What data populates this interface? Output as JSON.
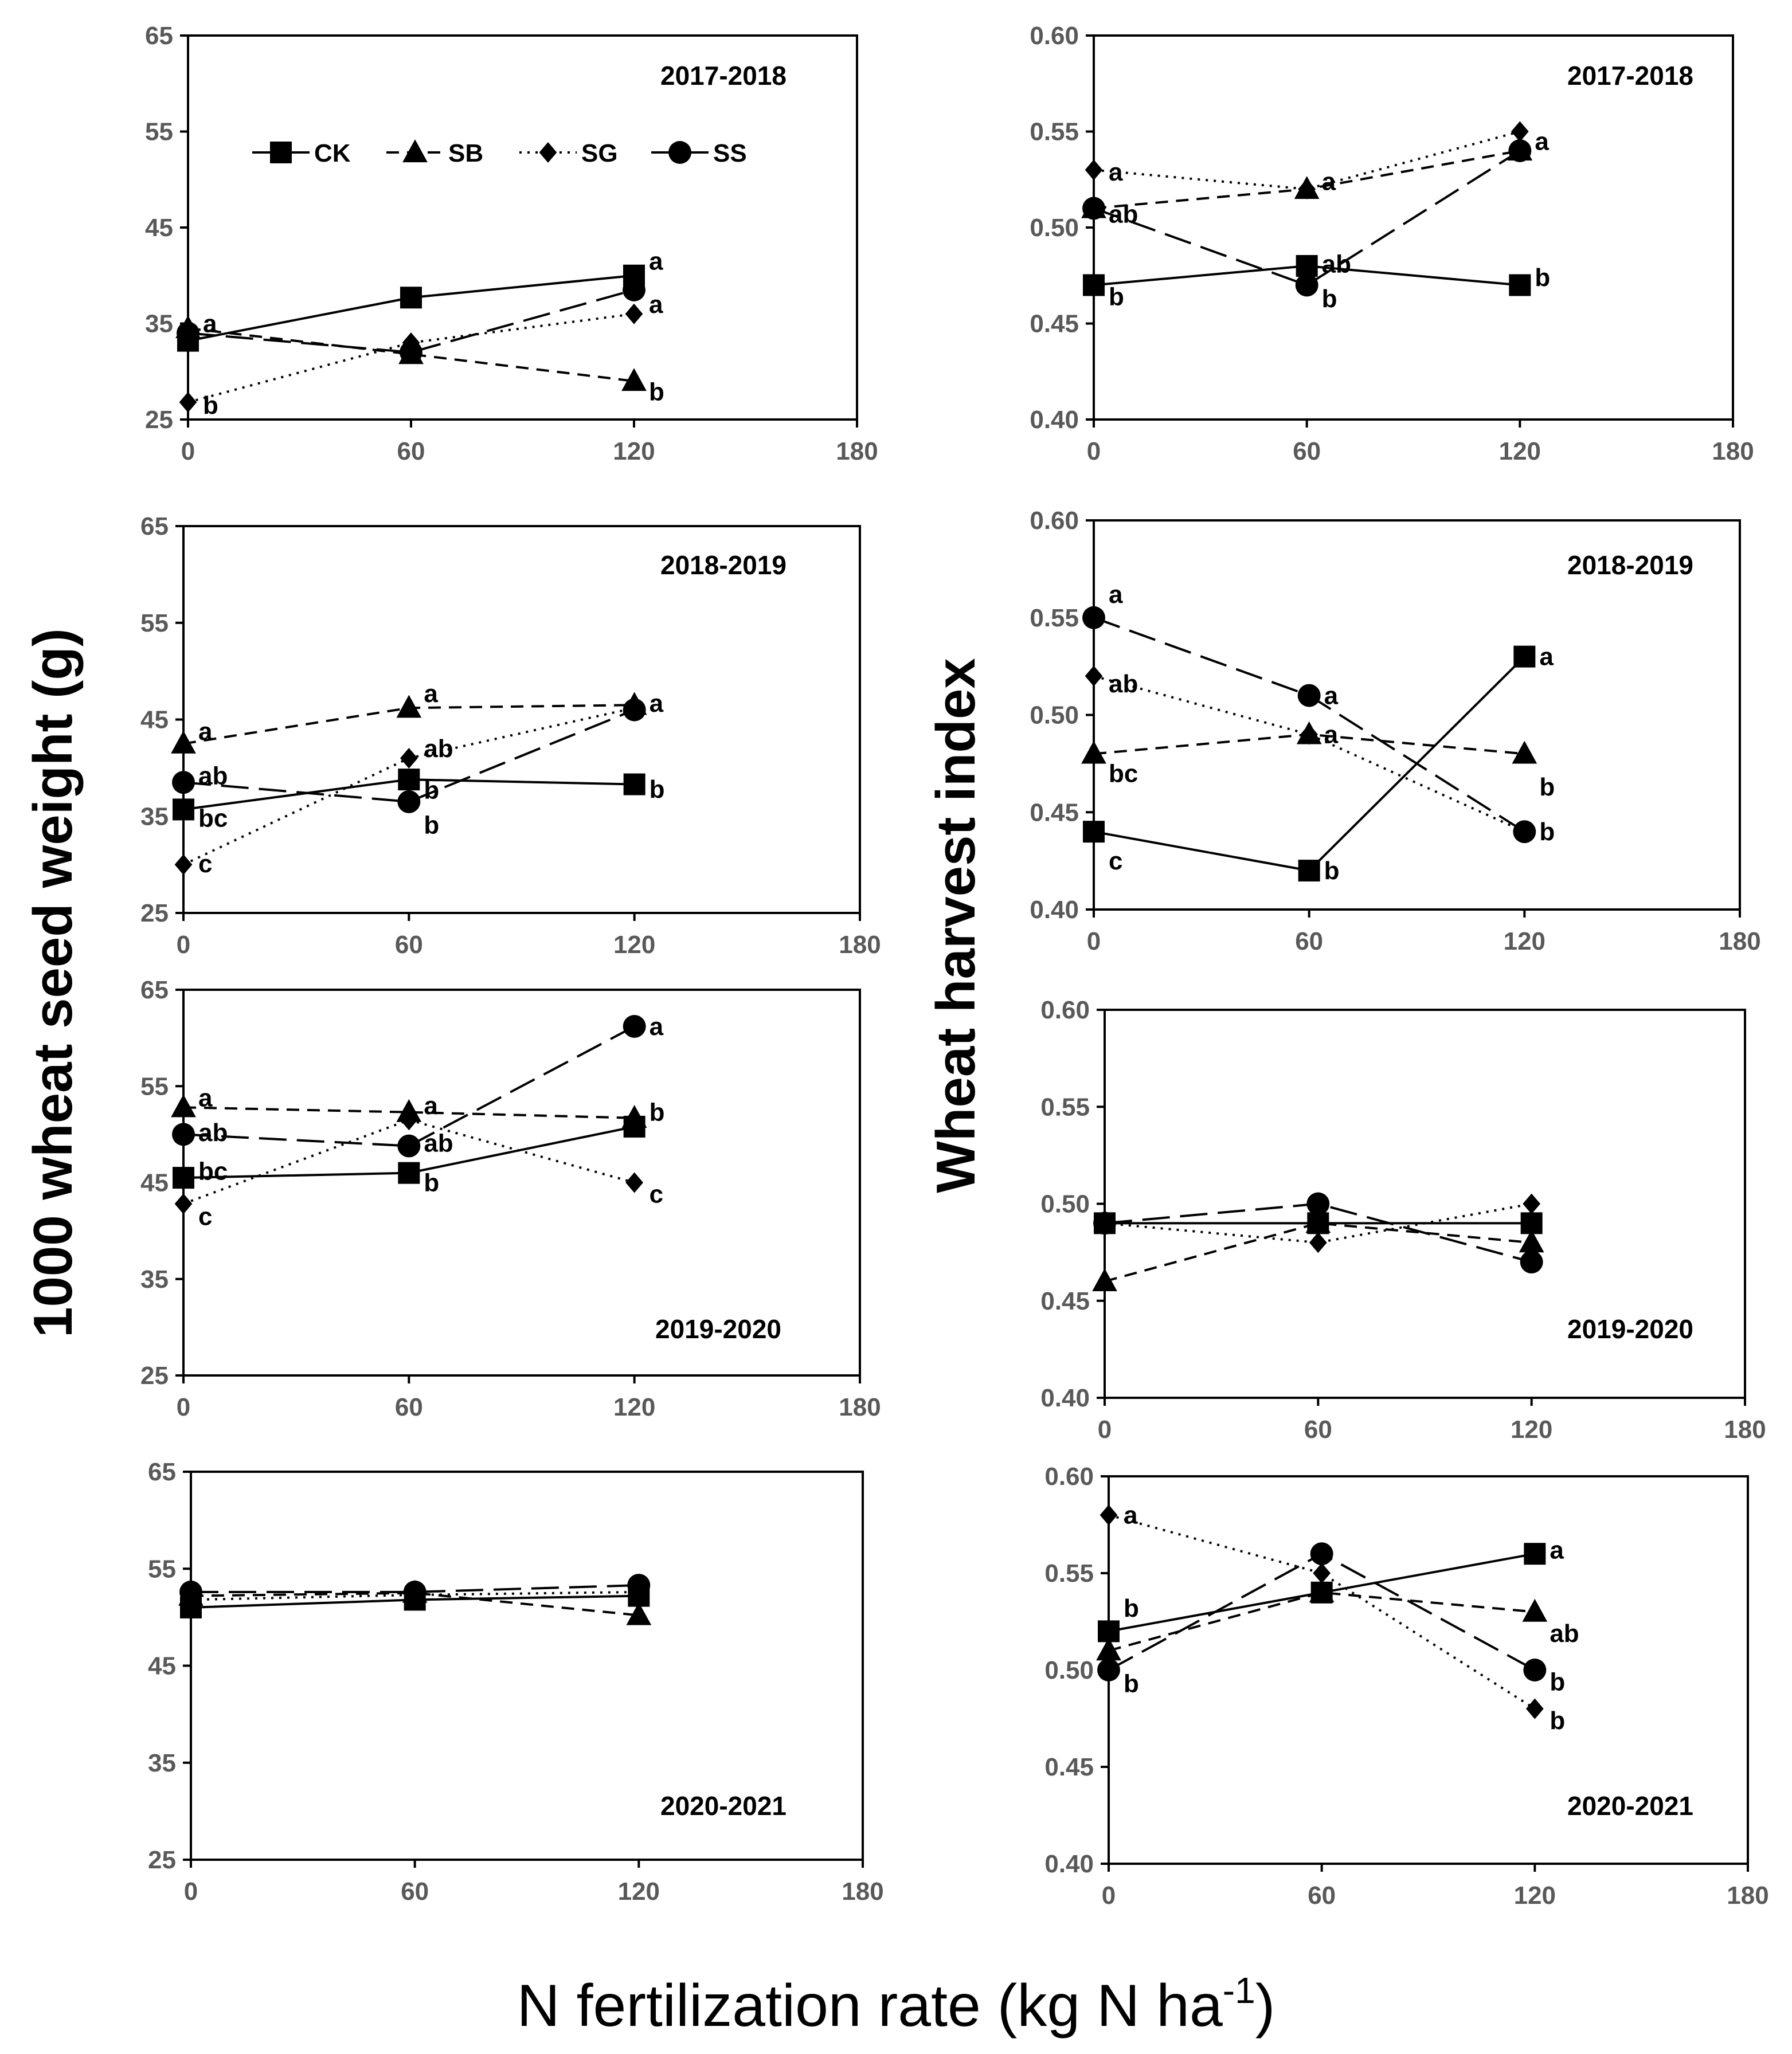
{
  "figure": {
    "xlabel_main": "N fertilization rate (kg N ha",
    "xlabel_sup": "-1",
    "xlabel_end": ")",
    "ylabel_left": "1000 wheat seed weight (g)",
    "ylabel_right": "Wheat harvest index",
    "series_styles": {
      "CK": {
        "marker": "square",
        "dash": "none"
      },
      "SB": {
        "marker": "triangle",
        "dash": "short-dash"
      },
      "SG": {
        "marker": "diamond",
        "dash": "dotted"
      },
      "SS": {
        "marker": "circle",
        "dash": "long-dash"
      }
    },
    "legend": {
      "placement": "top-left of first panel",
      "entries": [
        "CK",
        "SB",
        "SG",
        "SS"
      ]
    }
  },
  "chart_data": [
    {
      "type": "line",
      "title": "2017-2018",
      "xlim": [
        0,
        180
      ],
      "ylim": [
        25,
        65
      ],
      "x_ticks": [
        0,
        60,
        120,
        180
      ],
      "y_ticks": [
        25,
        35,
        45,
        55,
        65
      ],
      "series": [
        {
          "name": "CK",
          "x": [
            0,
            60,
            120
          ],
          "y": [
            33.2,
            37.7,
            40
          ]
        },
        {
          "name": "SB",
          "x": [
            0,
            60,
            120
          ],
          "y": [
            34.5,
            31.8,
            29
          ]
        },
        {
          "name": "SG",
          "x": [
            0,
            60,
            120
          ],
          "y": [
            26.8,
            33,
            36
          ]
        },
        {
          "name": "SS",
          "x": [
            0,
            60,
            120
          ],
          "y": [
            34,
            32,
            38.5
          ]
        }
      ],
      "annotations": [
        {
          "x": 0,
          "y": 35,
          "text": "a"
        },
        {
          "x": 0,
          "y": 26.5,
          "text": "b"
        },
        {
          "x": 120,
          "y": 41.5,
          "text": "a"
        },
        {
          "x": 120,
          "y": 37,
          "text": "a"
        },
        {
          "x": 120,
          "y": 27.9,
          "text": "b"
        }
      ]
    },
    {
      "type": "line",
      "title": "2017-2018",
      "xlim": [
        0,
        180
      ],
      "ylim": [
        0.4,
        0.6
      ],
      "x_ticks": [
        0,
        60,
        120,
        180
      ],
      "y_ticks": [
        0.4,
        0.45,
        0.5,
        0.55,
        0.6
      ],
      "series": [
        {
          "name": "CK",
          "x": [
            0,
            60,
            120
          ],
          "y": [
            0.47,
            0.48,
            0.47
          ]
        },
        {
          "name": "SB",
          "x": [
            0,
            60,
            120
          ],
          "y": [
            0.51,
            0.52,
            0.54
          ]
        },
        {
          "name": "SG",
          "x": [
            0,
            60,
            120
          ],
          "y": [
            0.53,
            0.52,
            0.55
          ]
        },
        {
          "name": "SS",
          "x": [
            0,
            60,
            120
          ],
          "y": [
            0.51,
            0.47,
            0.54
          ]
        }
      ],
      "annotations": [
        {
          "x": 0,
          "y": 0.529,
          "text": "a"
        },
        {
          "x": 0,
          "y": 0.507,
          "text": "ab"
        },
        {
          "x": 0,
          "y": 0.464,
          "text": "b"
        },
        {
          "x": 60,
          "y": 0.524,
          "text": "a"
        },
        {
          "x": 60,
          "y": 0.481,
          "text": "ab"
        },
        {
          "x": 60,
          "y": 0.463,
          "text": "b"
        },
        {
          "x": 120,
          "y": 0.545,
          "text": "a"
        },
        {
          "x": 120,
          "y": 0.474,
          "text": "b"
        }
      ]
    },
    {
      "type": "line",
      "title": "2018-2019",
      "xlim": [
        0,
        180
      ],
      "ylim": [
        25,
        65
      ],
      "x_ticks": [
        0,
        60,
        120,
        180
      ],
      "y_ticks": [
        25,
        35,
        45,
        55,
        65
      ],
      "series": [
        {
          "name": "CK",
          "x": [
            0,
            60,
            120
          ],
          "y": [
            35.7,
            38.8,
            38.3
          ]
        },
        {
          "name": "SB",
          "x": [
            0,
            60,
            120
          ],
          "y": [
            42.5,
            46.2,
            46.5
          ]
        },
        {
          "name": "SG",
          "x": [
            0,
            60,
            120
          ],
          "y": [
            30,
            41,
            46.2
          ]
        },
        {
          "name": "SS",
          "x": [
            0,
            60,
            120
          ],
          "y": [
            38.5,
            36.5,
            46
          ]
        }
      ],
      "annotations": [
        {
          "x": 0,
          "y": 43.8,
          "text": "a"
        },
        {
          "x": 0,
          "y": 39.2,
          "text": "ab"
        },
        {
          "x": 0,
          "y": 34.8,
          "text": "bc"
        },
        {
          "x": 0,
          "y": 30.1,
          "text": "c"
        },
        {
          "x": 60,
          "y": 47.7,
          "text": "a"
        },
        {
          "x": 60,
          "y": 42,
          "text": "ab"
        },
        {
          "x": 60,
          "y": 37.7,
          "text": "b"
        },
        {
          "x": 60,
          "y": 34.1,
          "text": "b"
        },
        {
          "x": 120,
          "y": 46.7,
          "text": "a"
        },
        {
          "x": 120,
          "y": 37.8,
          "text": "b"
        }
      ]
    },
    {
      "type": "line",
      "title": "2018-2019",
      "xlim": [
        0,
        180
      ],
      "ylim": [
        0.4,
        0.6
      ],
      "x_ticks": [
        0,
        60,
        120,
        180
      ],
      "y_ticks": [
        0.4,
        0.45,
        0.5,
        0.55,
        0.6
      ],
      "series": [
        {
          "name": "CK",
          "x": [
            0,
            60,
            120
          ],
          "y": [
            0.44,
            0.42,
            0.53
          ]
        },
        {
          "name": "SB",
          "x": [
            0,
            60,
            120
          ],
          "y": [
            0.48,
            0.49,
            0.48
          ]
        },
        {
          "name": "SG",
          "x": [
            0,
            60,
            120
          ],
          "y": [
            0.52,
            0.49,
            0.44
          ]
        },
        {
          "name": "SS",
          "x": [
            0,
            60,
            120
          ],
          "y": [
            0.55,
            0.51,
            0.44
          ]
        }
      ],
      "annotations": [
        {
          "x": 0,
          "y": 0.562,
          "text": "a"
        },
        {
          "x": 0,
          "y": 0.516,
          "text": "ab"
        },
        {
          "x": 0,
          "y": 0.47,
          "text": "bc"
        },
        {
          "x": 0,
          "y": 0.425,
          "text": "c"
        },
        {
          "x": 60,
          "y": 0.51,
          "text": "a"
        },
        {
          "x": 60,
          "y": 0.49,
          "text": "a"
        },
        {
          "x": 60,
          "y": 0.42,
          "text": "b"
        },
        {
          "x": 120,
          "y": 0.53,
          "text": "a"
        },
        {
          "x": 120,
          "y": 0.463,
          "text": "b"
        },
        {
          "x": 120,
          "y": 0.44,
          "text": "b"
        }
      ]
    },
    {
      "type": "line",
      "title": "2019-2020",
      "xlim": [
        0,
        180
      ],
      "ylim": [
        25,
        65
      ],
      "x_ticks": [
        0,
        60,
        120,
        180
      ],
      "y_ticks": [
        25,
        35,
        45,
        55,
        65
      ],
      "series": [
        {
          "name": "CK",
          "x": [
            0,
            60,
            120
          ],
          "y": [
            45.5,
            46,
            50.8
          ]
        },
        {
          "name": "SB",
          "x": [
            0,
            60,
            120
          ],
          "y": [
            52.8,
            52.3,
            51.7
          ]
        },
        {
          "name": "SG",
          "x": [
            0,
            60,
            120
          ],
          "y": [
            42.8,
            51.5,
            45
          ]
        },
        {
          "name": "SS",
          "x": [
            0,
            60,
            120
          ],
          "y": [
            50,
            48.8,
            61.2
          ]
        }
      ],
      "annotations": [
        {
          "x": 0,
          "y": 53.8,
          "text": "a"
        },
        {
          "x": 0,
          "y": 50.2,
          "text": "ab"
        },
        {
          "x": 0,
          "y": 46.2,
          "text": "bc"
        },
        {
          "x": 0,
          "y": 41.5,
          "text": "c"
        },
        {
          "x": 60,
          "y": 53,
          "text": "a"
        },
        {
          "x": 60,
          "y": 49.1,
          "text": "ab"
        },
        {
          "x": 60,
          "y": 45,
          "text": "b"
        },
        {
          "x": 120,
          "y": 61.2,
          "text": "a"
        },
        {
          "x": 120,
          "y": 52.3,
          "text": "b"
        },
        {
          "x": 120,
          "y": 43.8,
          "text": "c"
        }
      ]
    },
    {
      "type": "line",
      "title": "2019-2020",
      "xlim": [
        0,
        180
      ],
      "ylim": [
        0.4,
        0.6
      ],
      "x_ticks": [
        0,
        60,
        120,
        180
      ],
      "y_ticks": [
        0.4,
        0.45,
        0.5,
        0.55,
        0.6
      ],
      "series": [
        {
          "name": "CK",
          "x": [
            0,
            60,
            120
          ],
          "y": [
            0.49,
            0.49,
            0.49
          ]
        },
        {
          "name": "SB",
          "x": [
            0,
            60,
            120
          ],
          "y": [
            0.46,
            0.49,
            0.48
          ]
        },
        {
          "name": "SG",
          "x": [
            0,
            60,
            120
          ],
          "y": [
            0.49,
            0.48,
            0.5
          ]
        },
        {
          "name": "SS",
          "x": [
            0,
            60,
            120
          ],
          "y": [
            0.49,
            0.5,
            0.47
          ]
        }
      ],
      "annotations": []
    },
    {
      "type": "line",
      "title": "2020-2021",
      "xlim": [
        0,
        180
      ],
      "ylim": [
        25,
        65
      ],
      "x_ticks": [
        0,
        60,
        120,
        180
      ],
      "y_ticks": [
        25,
        35,
        45,
        55,
        65
      ],
      "series": [
        {
          "name": "CK",
          "x": [
            0,
            60,
            120
          ],
          "y": [
            51,
            51.8,
            52.2
          ]
        },
        {
          "name": "SB",
          "x": [
            0,
            60,
            120
          ],
          "y": [
            52.2,
            52.5,
            50.2
          ]
        },
        {
          "name": "SG",
          "x": [
            0,
            60,
            120
          ],
          "y": [
            51.8,
            52.3,
            52.6
          ]
        },
        {
          "name": "SS",
          "x": [
            0,
            60,
            120
          ],
          "y": [
            52.6,
            52.6,
            53.3
          ]
        }
      ],
      "annotations": []
    },
    {
      "type": "line",
      "title": "2020-2021",
      "xlim": [
        0,
        180
      ],
      "ylim": [
        0.4,
        0.6
      ],
      "x_ticks": [
        0,
        60,
        120,
        180
      ],
      "y_ticks": [
        0.4,
        0.45,
        0.5,
        0.55,
        0.6
      ],
      "series": [
        {
          "name": "CK",
          "x": [
            0,
            60,
            120
          ],
          "y": [
            0.52,
            0.54,
            0.56
          ]
        },
        {
          "name": "SB",
          "x": [
            0,
            60,
            120
          ],
          "y": [
            0.51,
            0.54,
            0.53
          ]
        },
        {
          "name": "SG",
          "x": [
            0,
            60,
            120
          ],
          "y": [
            0.58,
            0.55,
            0.48
          ]
        },
        {
          "name": "SS",
          "x": [
            0,
            60,
            120
          ],
          "y": [
            0.5,
            0.56,
            0.5
          ]
        }
      ],
      "annotations": [
        {
          "x": 0,
          "y": 0.58,
          "text": "a"
        },
        {
          "x": 0,
          "y": 0.532,
          "text": "b"
        },
        {
          "x": 0,
          "y": 0.493,
          "text": "b"
        },
        {
          "x": 120,
          "y": 0.562,
          "text": "a"
        },
        {
          "x": 120,
          "y": 0.519,
          "text": "ab"
        },
        {
          "x": 120,
          "y": 0.494,
          "text": "b"
        },
        {
          "x": 120,
          "y": 0.474,
          "text": "b"
        }
      ]
    }
  ]
}
